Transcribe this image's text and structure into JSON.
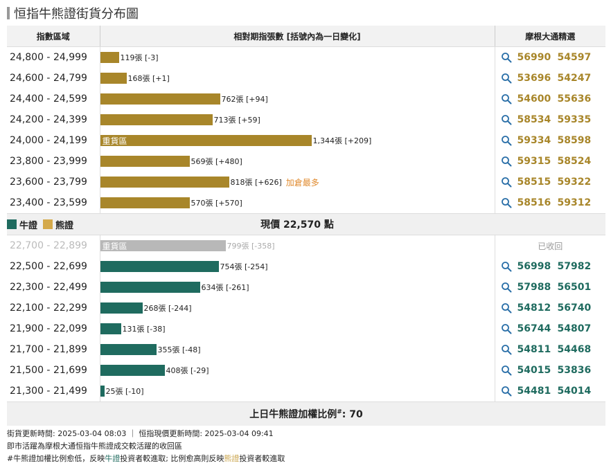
{
  "title": "恒指牛熊證街貨分布圖",
  "headers": {
    "range": "指數區域",
    "contracts": "相對期指張數 [括號內為一日變化]",
    "picks": "摩根大通精選"
  },
  "colors": {
    "bull": "#1f6b5f",
    "bear": "#a8862a",
    "recalled": "#b8b8b8",
    "bear_legend": "#d4a94a",
    "note": "#e08a2e"
  },
  "icons": {
    "search": "magnifier-icon"
  },
  "scale_max": 1344,
  "bear_rows": [
    {
      "range": "24,800 - 24,999",
      "value": 119,
      "label": "119張 [-3]",
      "codes": [
        "56990",
        "54597"
      ]
    },
    {
      "range": "24,600 - 24,799",
      "value": 168,
      "label": "168張 [+1]",
      "codes": [
        "53696",
        "54247"
      ]
    },
    {
      "range": "24,400 - 24,599",
      "value": 762,
      "label": "762張 [+94]",
      "codes": [
        "54600",
        "55636"
      ]
    },
    {
      "range": "24,200 - 24,399",
      "value": 713,
      "label": "713張 [+59]",
      "codes": [
        "58534",
        "59335"
      ]
    },
    {
      "range": "24,000 - 24,199",
      "value": 1344,
      "label": "1,344張 [+209]",
      "heavy": "重貨區",
      "codes": [
        "59334",
        "58598"
      ]
    },
    {
      "range": "23,800 - 23,999",
      "value": 569,
      "label": "569張 [+480]",
      "codes": [
        "59315",
        "58524"
      ]
    },
    {
      "range": "23,600 - 23,799",
      "value": 818,
      "label": "818張 [+626]",
      "note": "加倉最多",
      "codes": [
        "58515",
        "59322"
      ]
    },
    {
      "range": "23,400 - 23,599",
      "value": 570,
      "label": "570張 [+570]",
      "codes": [
        "58516",
        "59312"
      ]
    }
  ],
  "legend": {
    "bull": "牛證",
    "bear": "熊證"
  },
  "current_price": "現價 22,570 點",
  "bull_rows": [
    {
      "range": "22,700 - 22,899",
      "value": 799,
      "label": "799張 [-358]",
      "heavy": "重貨區",
      "recalled": "已收回"
    },
    {
      "range": "22,500 - 22,699",
      "value": 754,
      "label": "754張 [-254]",
      "codes": [
        "56998",
        "57982"
      ]
    },
    {
      "range": "22,300 - 22,499",
      "value": 634,
      "label": "634張 [-261]",
      "codes": [
        "57988",
        "56501"
      ]
    },
    {
      "range": "22,100 - 22,299",
      "value": 268,
      "label": "268張 [-244]",
      "codes": [
        "54812",
        "56740"
      ]
    },
    {
      "range": "21,900 - 22,099",
      "value": 131,
      "label": "131張 [-38]",
      "codes": [
        "56744",
        "54807"
      ]
    },
    {
      "range": "21,700 - 21,899",
      "value": 355,
      "label": "355張 [-48]",
      "codes": [
        "54811",
        "54468"
      ]
    },
    {
      "range": "21,500 - 21,699",
      "value": 408,
      "label": "408張 [-29]",
      "codes": [
        "54015",
        "53836"
      ]
    },
    {
      "range": "21,300 - 21,499",
      "value": 25,
      "label": "25張 [-10]",
      "codes": [
        "54481",
        "54014"
      ]
    }
  ],
  "ratio": {
    "label": "上日牛熊證加權比例",
    "mark": "#",
    "value": ": 70"
  },
  "notes": {
    "line1": "街貨更新時間: 2025-03-04 08:03 ｜ 恒指現價更新時間: 2025-03-04 09:41",
    "line2": "即市活躍為摩根大通恒指牛熊證成交較活躍的收回區",
    "line3_a": "#牛熊證加權比例愈低，反映",
    "line3_bull": "牛證",
    "line3_b": "投資者較進取; 比例愈高則反映",
    "line3_bear": "熊證",
    "line3_c": "投資者較進取"
  }
}
